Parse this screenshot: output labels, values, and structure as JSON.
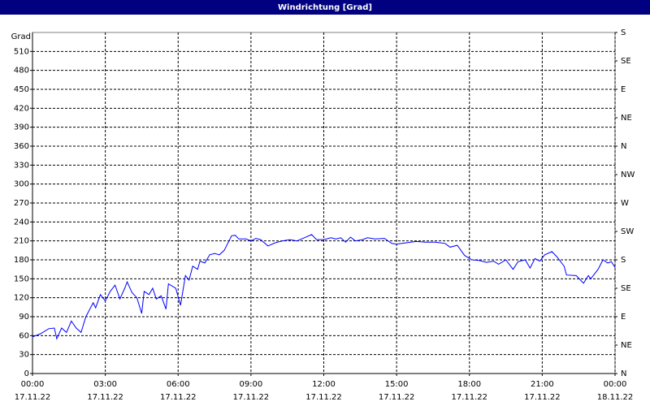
{
  "chart_data": {
    "type": "line",
    "title": "Windrichtung [Grad]",
    "ylabel": "Grad",
    "color": "#0000ff",
    "grid": true,
    "xlim": [
      0,
      24
    ],
    "xticks": [
      {
        "value": 0,
        "label": "00:00",
        "date": "17.11.22"
      },
      {
        "value": 3,
        "label": "03:00",
        "date": "17.11.22"
      },
      {
        "value": 6,
        "label": "06:00",
        "date": "17.11.22"
      },
      {
        "value": 9,
        "label": "09:00",
        "date": "17.11.22"
      },
      {
        "value": 12,
        "label": "12:00",
        "date": "17.11.22"
      },
      {
        "value": 15,
        "label": "15:00",
        "date": "17.11.22"
      },
      {
        "value": 18,
        "label": "18:00",
        "date": "17.11.22"
      },
      {
        "value": 21,
        "label": "21:00",
        "date": "17.11.22"
      },
      {
        "value": 24,
        "label": "00:00",
        "date": "18.11.22"
      }
    ],
    "ylim": [
      0,
      540
    ],
    "yticks": [
      0,
      30,
      60,
      90,
      120,
      150,
      180,
      210,
      240,
      270,
      300,
      330,
      360,
      390,
      420,
      450,
      480,
      510
    ],
    "y2lim": [
      0,
      540
    ],
    "y2ticks": [
      {
        "value": 0,
        "label": "N"
      },
      {
        "value": 45,
        "label": "NE"
      },
      {
        "value": 90,
        "label": "E"
      },
      {
        "value": 135,
        "label": "SE"
      },
      {
        "value": 180,
        "label": "S"
      },
      {
        "value": 225,
        "label": "SW"
      },
      {
        "value": 270,
        "label": "W"
      },
      {
        "value": 315,
        "label": "NW"
      },
      {
        "value": 360,
        "label": "N"
      },
      {
        "value": 405,
        "label": "NE"
      },
      {
        "value": 450,
        "label": "E"
      },
      {
        "value": 495,
        "label": "SE"
      },
      {
        "value": 540,
        "label": "S"
      }
    ],
    "x": [
      0.0,
      0.33,
      0.67,
      0.9,
      1.0,
      1.2,
      1.4,
      1.6,
      1.8,
      2.0,
      2.2,
      2.5,
      2.6,
      2.8,
      3.0,
      3.2,
      3.4,
      3.6,
      3.8,
      3.9,
      4.1,
      4.3,
      4.5,
      4.6,
      4.8,
      4.95,
      5.1,
      5.3,
      5.5,
      5.6,
      5.9,
      6.1,
      6.3,
      6.45,
      6.6,
      6.8,
      6.9,
      7.1,
      7.3,
      7.5,
      7.7,
      7.9,
      8.2,
      8.35,
      8.5,
      8.8,
      9.0,
      9.2,
      9.4,
      9.7,
      10.0,
      10.3,
      10.6,
      10.9,
      11.2,
      11.5,
      11.7,
      12.0,
      12.3,
      12.5,
      12.7,
      12.9,
      13.1,
      13.3,
      13.6,
      13.8,
      14.1,
      14.5,
      14.8,
      15.0,
      15.4,
      15.8,
      16.2,
      16.6,
      17.0,
      17.2,
      17.5,
      17.8,
      18.1,
      18.4,
      18.7,
      19.0,
      19.2,
      19.5,
      19.8,
      20.0,
      20.3,
      20.5,
      20.7,
      20.9,
      21.1,
      21.4,
      21.6,
      21.9,
      22.0,
      22.4,
      22.7,
      22.9,
      23.0,
      23.3,
      23.5,
      23.7,
      23.85,
      24.0
    ],
    "values": [
      58,
      63,
      71,
      72,
      55,
      72,
      65,
      83,
      72,
      65,
      90,
      112,
      104,
      125,
      115,
      130,
      140,
      118,
      135,
      145,
      128,
      120,
      95,
      130,
      125,
      135,
      118,
      123,
      102,
      142,
      135,
      108,
      155,
      148,
      170,
      165,
      178,
      175,
      188,
      190,
      188,
      195,
      218,
      219,
      213,
      213,
      210,
      214,
      212,
      202,
      207,
      210,
      212,
      210,
      215,
      220,
      212,
      212,
      215,
      213,
      215,
      208,
      216,
      210,
      212,
      215,
      213,
      214,
      206,
      205,
      207,
      209,
      208,
      208,
      206,
      200,
      203,
      187,
      180,
      179,
      176,
      178,
      173,
      180,
      165,
      177,
      180,
      167,
      182,
      178,
      188,
      193,
      185,
      170,
      156,
      155,
      143,
      155,
      150,
      165,
      180,
      175,
      177,
      168
    ]
  }
}
